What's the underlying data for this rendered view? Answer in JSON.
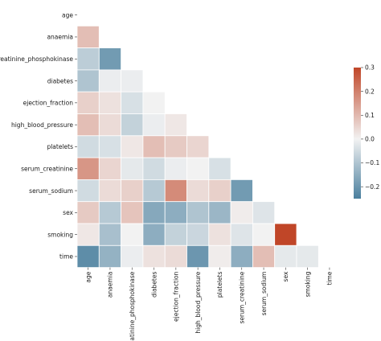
{
  "chart_data": {
    "type": "heatmap",
    "title": "",
    "xlabel": "",
    "ylabel": "",
    "variables": [
      "age",
      "anaemia",
      "creatinine_phosphokinase",
      "diabetes",
      "ejection_fraction",
      "high_blood_pressure",
      "platelets",
      "serum_creatinine",
      "serum_sodium",
      "sex",
      "smoking",
      "time"
    ],
    "mask": "upper-triangle-including-diagonal",
    "matrix": [
      [
        null,
        null,
        null,
        null,
        null,
        null,
        null,
        null,
        null,
        null,
        null,
        null
      ],
      [
        0.09,
        null,
        null,
        null,
        null,
        null,
        null,
        null,
        null,
        null,
        null,
        null
      ],
      [
        -0.08,
        -0.19,
        null,
        null,
        null,
        null,
        null,
        null,
        null,
        null,
        null,
        null
      ],
      [
        -0.1,
        -0.01,
        -0.01,
        null,
        null,
        null,
        null,
        null,
        null,
        null,
        null,
        null
      ],
      [
        0.06,
        0.03,
        -0.04,
        -0.0,
        null,
        null,
        null,
        null,
        null,
        null,
        null,
        null
      ],
      [
        0.09,
        0.04,
        -0.07,
        -0.01,
        0.02,
        null,
        null,
        null,
        null,
        null,
        null,
        null
      ],
      [
        -0.05,
        -0.04,
        0.02,
        0.09,
        0.07,
        0.05,
        null,
        null,
        null,
        null,
        null,
        null
      ],
      [
        0.16,
        0.05,
        -0.02,
        -0.05,
        -0.01,
        -0.0,
        -0.04,
        null,
        null,
        null,
        null,
        null
      ],
      [
        -0.05,
        0.04,
        0.06,
        -0.09,
        0.18,
        0.04,
        0.06,
        -0.19,
        null,
        null,
        null,
        null
      ],
      [
        0.07,
        -0.09,
        0.08,
        -0.16,
        -0.15,
        -0.1,
        -0.13,
        0.01,
        -0.03,
        null,
        null,
        null
      ],
      [
        0.02,
        -0.11,
        0.0,
        -0.15,
        -0.07,
        -0.06,
        0.03,
        -0.03,
        0.0,
        0.45,
        null,
        null
      ],
      [
        -0.22,
        -0.14,
        -0.01,
        0.03,
        0.04,
        -0.2,
        0.01,
        -0.15,
        0.09,
        -0.02,
        -0.02,
        null
      ]
    ],
    "colorbar": {
      "min": -0.25,
      "max": 0.3,
      "ticks": [
        "0.3",
        "0.2",
        "0.1",
        "0.0",
        "−0.1",
        "−0.2"
      ],
      "tick_values": [
        0.3,
        0.2,
        0.1,
        0.0,
        -0.1,
        -0.2
      ]
    },
    "colormap": {
      "negative": "#4a7f9e",
      "neutral": "#f2f2f2",
      "positive": "#c04628"
    }
  }
}
